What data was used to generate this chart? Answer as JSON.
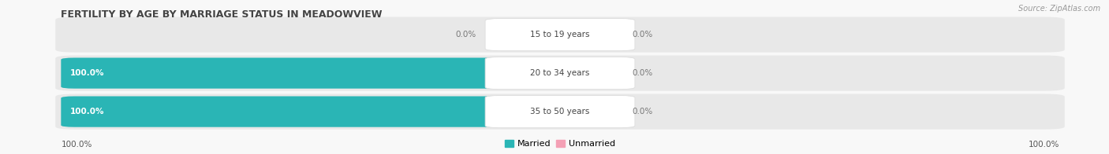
{
  "title": "FERTILITY BY AGE BY MARRIAGE STATUS IN MEADOWVIEW",
  "source": "Source: ZipAtlas.com",
  "categories": [
    "15 to 19 years",
    "20 to 34 years",
    "35 to 50 years"
  ],
  "married_values": [
    0.0,
    100.0,
    100.0
  ],
  "unmarried_values": [
    0.0,
    0.0,
    0.0
  ],
  "married_color": "#2ab5b5",
  "unmarried_color": "#f4a0b5",
  "bar_bg_color": "#e8e8e8",
  "title_color": "#444444",
  "source_color": "#999999",
  "axis_label_left": "100.0%",
  "axis_label_right": "100.0%",
  "legend_married": "Married",
  "legend_unmarried": "Unmarried",
  "figsize": [
    14.06,
    1.96
  ],
  "dpi": 100,
  "bg_color": "#f8f8f8"
}
